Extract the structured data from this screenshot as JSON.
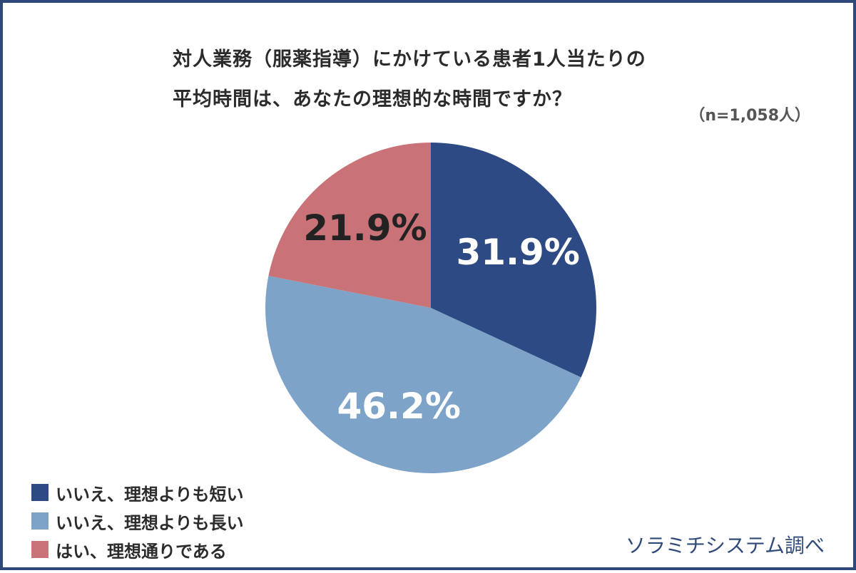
{
  "title": {
    "line1": "対人業務（服薬指導）にかけている患者1人当たりの",
    "line2": "平均時間は、あなたの理想的な時間ですか？"
  },
  "sample_size": "（n=1,058人）",
  "source": "ソラミチシステム調べ",
  "chart_data": {
    "type": "pie",
    "title": "対人業務（服薬指導）にかけている患者1人当たりの平均時間は、あなたの理想的な時間ですか？",
    "categories": [
      "いいえ、理想よりも短い",
      "いいえ、理想よりも長い",
      "はい、理想通りである"
    ],
    "values": [
      31.9,
      46.2,
      21.9
    ],
    "value_labels": [
      "31.9%",
      "46.2%",
      "21.9%"
    ],
    "colors": [
      "#2e4a85",
      "#7ea3c9",
      "#c97278"
    ],
    "label_colors": [
      "#ffffff",
      "#ffffff",
      "#222222"
    ],
    "start_angle": "12 o'clock",
    "direction": "clockwise",
    "legend_position": "bottom-left"
  }
}
